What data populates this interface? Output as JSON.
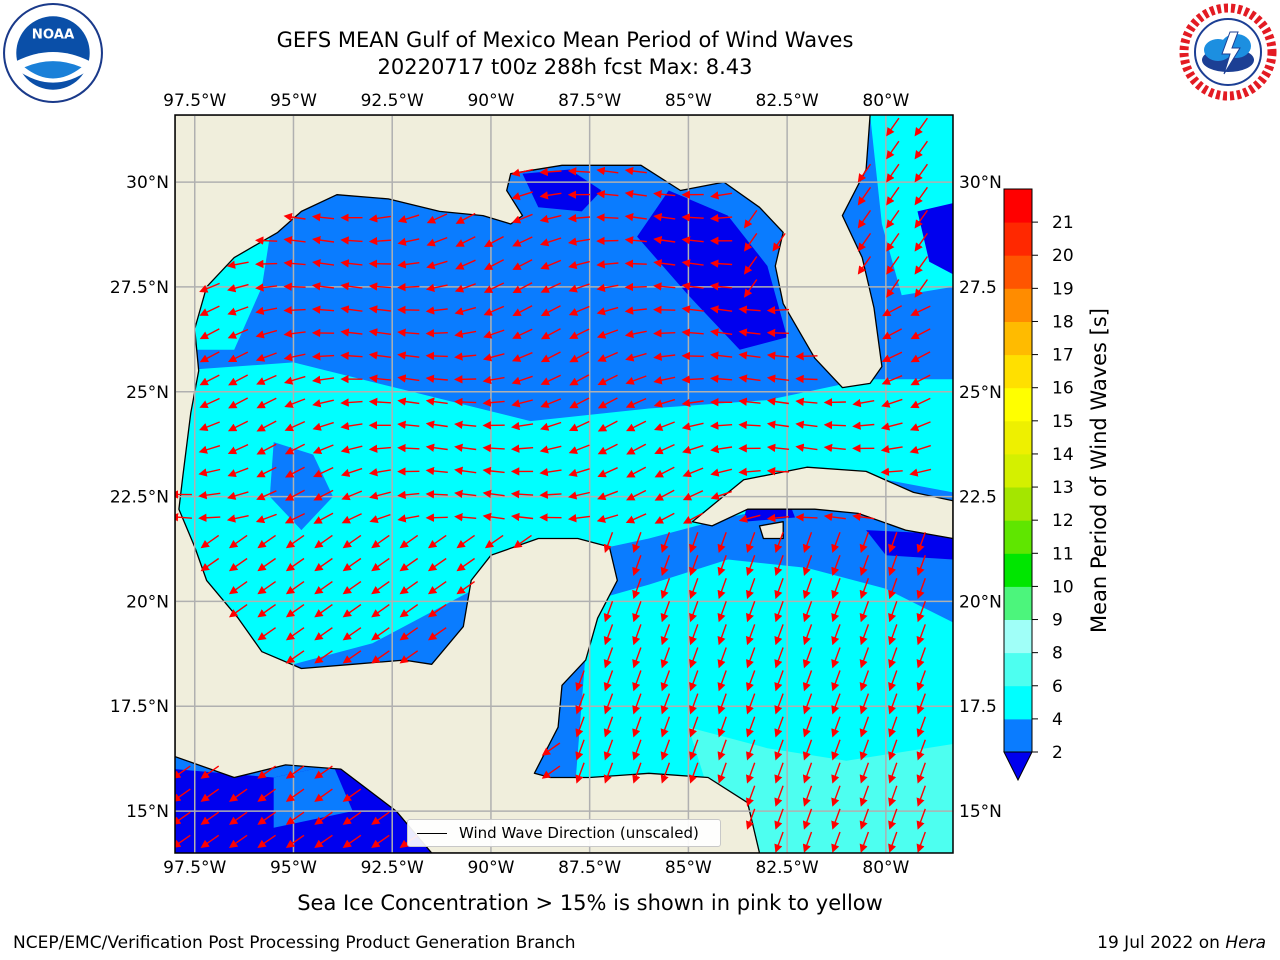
{
  "title": {
    "line1": "GEFS MEAN Gulf of Mexico Mean Period of Wind Waves",
    "line2": "20220717 t00z 288h fcst   Max: 8.43"
  },
  "logos": {
    "left": "noaa-logo",
    "right": "national-weather-service-logo",
    "left_text": "NOAA"
  },
  "map": {
    "lon_ticks": [
      "97.5°W",
      "95°W",
      "92.5°W",
      "90°W",
      "87.5°W",
      "85°W",
      "82.5°W",
      "80°W"
    ],
    "lat_ticks_left": [
      "30°N",
      "27.5°N",
      "25°N",
      "22.5°N",
      "20°N",
      "17.5°N",
      "15°N"
    ],
    "lat_ticks_right": [
      "30°N",
      "27.5",
      "25°N",
      "22.5",
      "20°N",
      "17.5",
      "15°N"
    ],
    "lon_range": [
      -98,
      -78.3
    ],
    "lat_range": [
      14,
      31.6
    ],
    "colors": {
      "land": "#f0eedc",
      "ocean_deep": "#0000ee",
      "ocean_2_4": "#0a7cff",
      "ocean_4_6": "#00ffff",
      "ocean_6_8": "#4dfff0",
      "arrow": "#ff0000",
      "grid": "#b0b0b0"
    }
  },
  "legend": {
    "label": "Wind Wave Direction (unscaled)"
  },
  "colorbar": {
    "label": "Mean Period of Wind Waves [s]",
    "ticks": [
      "2",
      "4",
      "6",
      "8",
      "9",
      "10",
      "11",
      "12",
      "13",
      "14",
      "15",
      "16",
      "17",
      "18",
      "19",
      "20",
      "21"
    ],
    "colors": [
      "#0a7cff",
      "#00ffff",
      "#4dfff0",
      "#a0fff8",
      "#4cf57c",
      "#00e600",
      "#5fe600",
      "#a4e600",
      "#d4f000",
      "#eef000",
      "#ffff00",
      "#ffe000",
      "#ffbb00",
      "#ff8c00",
      "#ff5500",
      "#ff2800",
      "#ff0000"
    ],
    "under_color": "#0000ee"
  },
  "footer": {
    "caption": "Sea Ice Concentration > 15% is shown in pink to yellow",
    "left": "NCEP/EMC/Verification Post Processing Product Generation Branch",
    "right_date": "19 Jul 2022 on ",
    "right_host": "Hera"
  }
}
